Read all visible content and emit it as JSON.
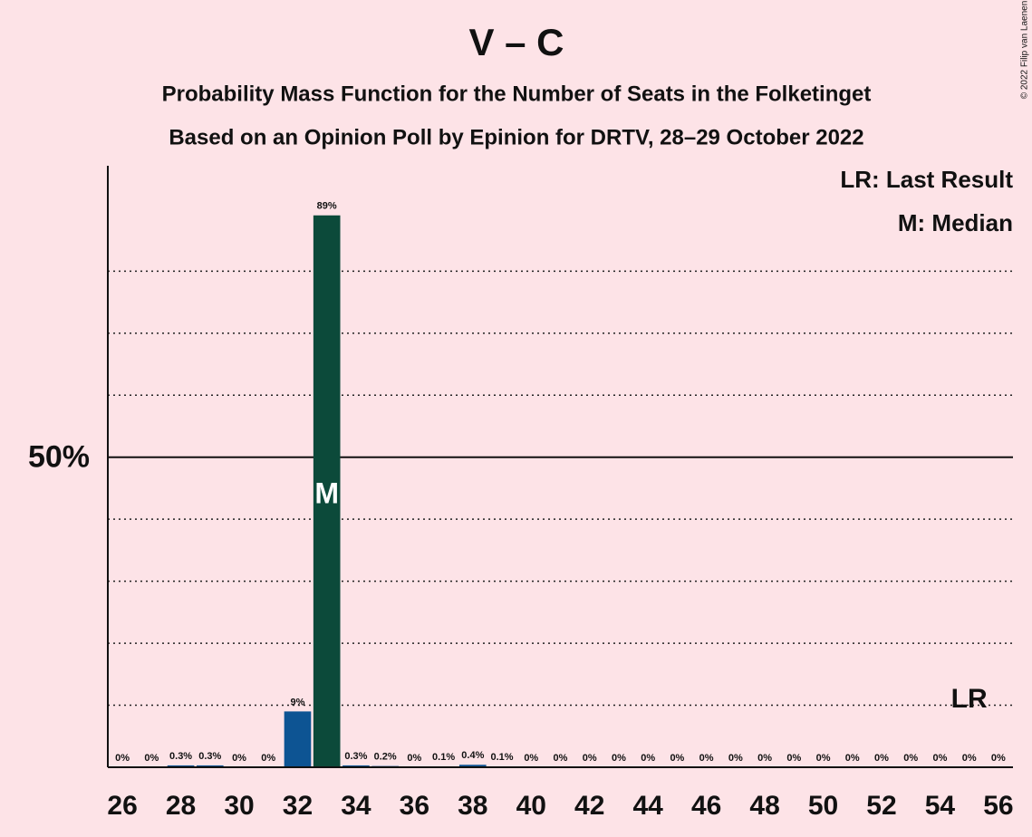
{
  "chart_data": {
    "type": "bar",
    "title": "V – C",
    "subtitle": [
      "Probability Mass Function for the Number of Seats in the Folketinget",
      "Based on an Opinion Poll by Epinion for DRTV, 28–29 October 2022"
    ],
    "copyright": "© 2022 Filip van Laenen",
    "x": [
      26,
      27,
      28,
      29,
      30,
      31,
      32,
      33,
      34,
      35,
      36,
      37,
      38,
      39,
      40,
      41,
      42,
      43,
      44,
      45,
      46,
      47,
      48,
      49,
      50,
      51,
      52,
      53,
      54,
      55,
      56
    ],
    "values": [
      0,
      0,
      0.3,
      0.3,
      0,
      0,
      9,
      89,
      0.3,
      0.2,
      0,
      0.1,
      0.4,
      0.1,
      0,
      0,
      0,
      0,
      0,
      0,
      0,
      0,
      0,
      0,
      0,
      0,
      0,
      0,
      0,
      0,
      0
    ],
    "value_labels": [
      "0%",
      "0%",
      "0.3%",
      "0.3%",
      "0%",
      "0%",
      "9%",
      "89%",
      "0.3%",
      "0.2%",
      "0%",
      "0.1%",
      "0.4%",
      "0.1%",
      "0%",
      "0%",
      "0%",
      "0%",
      "0%",
      "0%",
      "0%",
      "0%",
      "0%",
      "0%",
      "0%",
      "0%",
      "0%",
      "0%",
      "0%",
      "0%",
      "0%"
    ],
    "color": "#0d5493",
    "xlim": [
      25.5,
      56.5
    ],
    "xticks": [
      26,
      28,
      30,
      32,
      34,
      36,
      38,
      40,
      42,
      44,
      46,
      48,
      50,
      52,
      54,
      56
    ],
    "ylim": [
      0,
      97
    ],
    "yticks": [
      {
        "value": 50,
        "label": "50%"
      }
    ],
    "minor_grid": [
      10,
      20,
      30,
      40,
      60,
      70,
      80
    ],
    "median": {
      "x": 33,
      "label": "M",
      "color": "#0c4a3a"
    },
    "last_result": {
      "x": 55,
      "label": "LR"
    },
    "legend": [
      "LR: Last Result",
      "M: Median"
    ]
  }
}
